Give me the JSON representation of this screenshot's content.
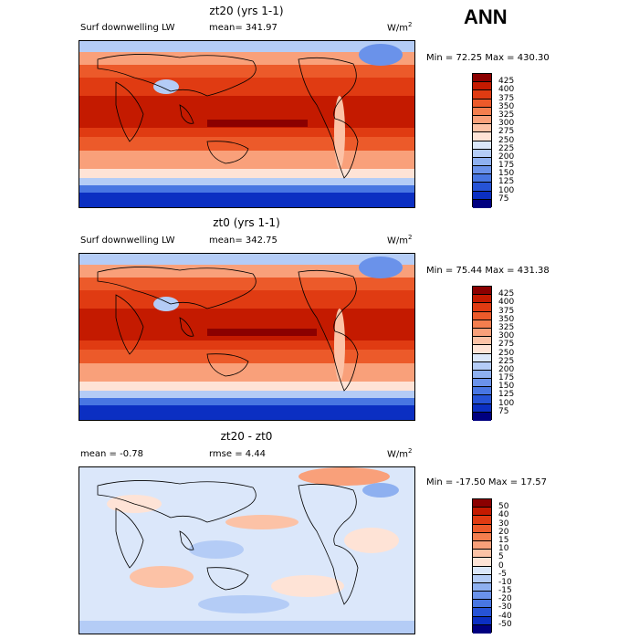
{
  "season": "ANN",
  "units_label": "W/m",
  "units_sup": "2",
  "panels": [
    {
      "title": "zt20 (yrs 1-1)",
      "left_text": "Surf downwelling LW",
      "center_text": "mean= 341.97",
      "min_label": "Min = ",
      "min_value": "72.25",
      "max_label": "Max = ",
      "max_value": "430.30",
      "colorbar_levels": [
        "425",
        "400",
        "375",
        "350",
        "325",
        "300",
        "275",
        "250",
        "225",
        "200",
        "175",
        "150",
        "125",
        "100",
        "75"
      ],
      "colorbar_colors": [
        "#8b0000",
        "#c41a00",
        "#e03b12",
        "#ec5a2a",
        "#f47e4e",
        "#f9a07a",
        "#fcc2a6",
        "#fee3d6",
        "#dbe7fa",
        "#b4ccf6",
        "#8eb0f0",
        "#6a92ea",
        "#4876e2",
        "#2653d6",
        "#0b2fc2",
        "#000080"
      ]
    },
    {
      "title": "zt0 (yrs 1-1)",
      "left_text": "Surf downwelling LW",
      "center_text": "mean= 342.75",
      "min_label": "Min = ",
      "min_value": "75.44",
      "max_label": "Max = ",
      "max_value": "431.38",
      "colorbar_levels": [
        "425",
        "400",
        "375",
        "350",
        "325",
        "300",
        "275",
        "250",
        "225",
        "200",
        "175",
        "150",
        "125",
        "100",
        "75"
      ],
      "colorbar_colors": [
        "#8b0000",
        "#c41a00",
        "#e03b12",
        "#ec5a2a",
        "#f47e4e",
        "#f9a07a",
        "#fcc2a6",
        "#fee3d6",
        "#dbe7fa",
        "#b4ccf6",
        "#8eb0f0",
        "#6a92ea",
        "#4876e2",
        "#2653d6",
        "#0b2fc2",
        "#000080"
      ]
    },
    {
      "title": "zt20 - zt0",
      "left_text": "mean =  -0.78",
      "center_text": "rmse =   4.44",
      "min_label": "Min = ",
      "min_value": "-17.50",
      "max_label": "Max = ",
      "max_value": "17.57",
      "colorbar_levels": [
        "50",
        "40",
        "30",
        "20",
        "15",
        "10",
        "5",
        "0",
        "-5",
        "-10",
        "-15",
        "-20",
        "-30",
        "-40",
        "-50"
      ],
      "colorbar_colors": [
        "#8b0000",
        "#c41a00",
        "#e03b12",
        "#ec5a2a",
        "#f47e4e",
        "#f9a07a",
        "#fcc2a6",
        "#fee3d6",
        "#dbe7fa",
        "#b4ccf6",
        "#8eb0f0",
        "#6a92ea",
        "#4876e2",
        "#2653d6",
        "#0b2fc2",
        "#000080"
      ]
    }
  ]
}
